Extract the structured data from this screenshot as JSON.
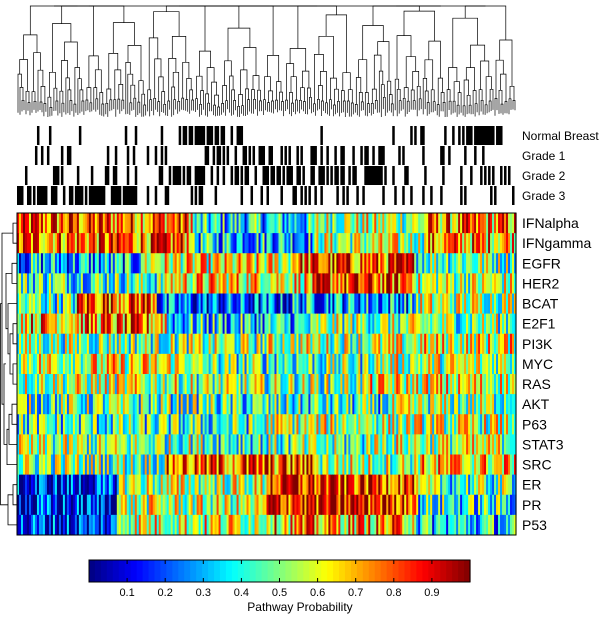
{
  "chart_data": {
    "type": "heatmap",
    "title": "",
    "annotation_tracks": [
      "Normal Breast",
      "Grade 1",
      "Grade 2",
      "Grade 3"
    ],
    "pathways": [
      "IFNalpha",
      "IFNgamma",
      "EGFR",
      "HER2",
      "BCAT",
      "E2F1",
      "PI3K",
      "MYC",
      "RAS",
      "AKT",
      "P63",
      "STAT3",
      "SRC",
      "ER",
      "PR",
      "P53"
    ],
    "colorbar": {
      "label": "Pathway Probability",
      "range": [
        0,
        1
      ],
      "ticks": [
        "0.1",
        "0.2",
        "0.3",
        "0.4",
        "0.5",
        "0.6",
        "0.7",
        "0.8",
        "0.9"
      ],
      "colormap": "jet"
    },
    "samples_approx": 250,
    "dendrograms": [
      "samples (top)",
      "pathways (left)"
    ],
    "grid": false
  }
}
